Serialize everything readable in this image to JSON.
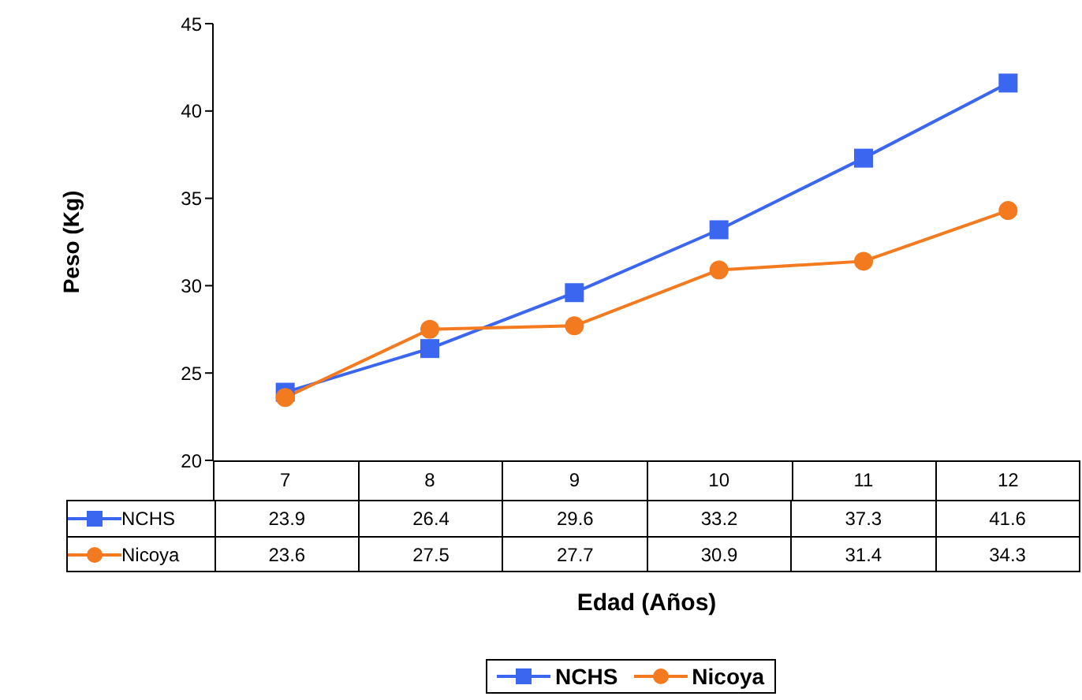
{
  "chart_data": {
    "type": "line",
    "xlabel": "Edad (Años)",
    "ylabel": "Peso (Kg)",
    "categories": [
      "7",
      "8",
      "9",
      "10",
      "11",
      "12"
    ],
    "series": [
      {
        "name": "NCHS",
        "color": "#3a66f0",
        "marker": "square",
        "values": [
          23.9,
          26.4,
          29.6,
          33.2,
          37.3,
          41.6
        ]
      },
      {
        "name": "Nicoya",
        "color": "#f47a20",
        "marker": "circle",
        "values": [
          23.6,
          27.5,
          27.7,
          30.9,
          31.4,
          34.3
        ]
      }
    ],
    "ylim": [
      20,
      45
    ],
    "yticks": [
      20,
      25,
      30,
      35,
      40,
      45
    ],
    "grid": false,
    "legend": "bottom",
    "data_labels": true
  }
}
